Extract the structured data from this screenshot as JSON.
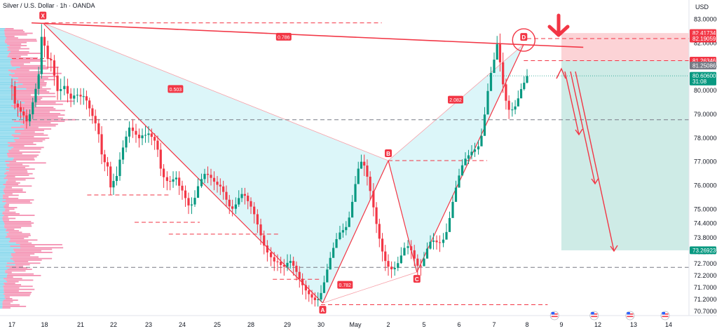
{
  "header": {
    "title": "Silver / U.S. Dollar · 1h · OANDA",
    "currency": "USD"
  },
  "chart_data": {
    "type": "candlestick-harmonic",
    "title": "Silver / U.S. Dollar · 1h · OANDA",
    "ylim": [
      70.55,
      83.4
    ],
    "price_ticks": [
      83.0,
      82.0,
      81.0,
      80.0,
      79.0,
      78.0,
      77.0,
      76.0,
      75.0,
      74.4,
      73.8,
      73.2,
      72.7,
      72.2,
      71.7,
      71.2,
      70.7
    ],
    "time_ticks": [
      {
        "label": "17",
        "t": 0
      },
      {
        "label": "18",
        "t": 1
      },
      {
        "label": "21",
        "t": 2
      },
      {
        "label": "22",
        "t": 3
      },
      {
        "label": "23",
        "t": 4
      },
      {
        "label": "24",
        "t": 5
      },
      {
        "label": "25",
        "t": 6
      },
      {
        "label": "28",
        "t": 7
      },
      {
        "label": "29",
        "t": 8
      },
      {
        "label": "30",
        "t": 9
      },
      {
        "label": "May",
        "t": 10
      },
      {
        "label": "2",
        "t": 11
      },
      {
        "label": "5",
        "t": 12
      },
      {
        "label": "6",
        "t": 13
      },
      {
        "label": "7",
        "t": 14
      },
      {
        "label": "8",
        "t": 15
      },
      {
        "label": "9",
        "t": 16
      },
      {
        "label": "12",
        "t": 17
      },
      {
        "label": "13",
        "t": 18
      },
      {
        "label": "14",
        "t": 19
      }
    ],
    "pattern_points": [
      {
        "label": "X",
        "t": 0.95,
        "price": 82.85
      },
      {
        "label": "A",
        "t": 9.05,
        "price": 71.05
      },
      {
        "label": "B",
        "t": 11.0,
        "price": 77.05
      },
      {
        "label": "C",
        "t": 11.8,
        "price": 72.35
      },
      {
        "label": "D",
        "t": 14.9,
        "price": 81.95
      }
    ],
    "ratios": [
      {
        "label": "0.503",
        "t": 4.8,
        "price": 80.05
      },
      {
        "label": "2.082",
        "t": 12.9,
        "price": 79.6
      },
      {
        "label": "0.782",
        "t": 9.7,
        "price": 71.8
      },
      {
        "label": "0.786",
        "t": 7.9,
        "price": 82.25
      }
    ],
    "price_tags": [
      {
        "label": "82.41734",
        "price": 82.42,
        "color": "#f23645"
      },
      {
        "label": "82.19059",
        "price": 82.19,
        "color": "#f23645"
      },
      {
        "label": "81.26346",
        "price": 81.26,
        "color": "#f23645"
      },
      {
        "label": "81.25086",
        "price": 81.05,
        "color": "#787b86"
      },
      {
        "label": "80.60600",
        "price": 80.62,
        "color": "#089981"
      },
      {
        "label": "31:08",
        "price": 80.38,
        "color": "#089981"
      },
      {
        "label": "73.26923",
        "price": 73.27,
        "color": "#089981"
      }
    ],
    "candles": [
      [
        0.0,
        80.21,
        80.18,
        80.5,
        79.6
      ],
      [
        0.09,
        80.18,
        79.45,
        80.4,
        79.2
      ],
      [
        0.18,
        79.45,
        79.3,
        79.6,
        78.9
      ],
      [
        0.27,
        79.3,
        79.12,
        79.55,
        78.8
      ],
      [
        0.36,
        79.12,
        78.95,
        79.3,
        78.6
      ],
      [
        0.45,
        78.95,
        78.7,
        79.2,
        78.4
      ],
      [
        0.55,
        78.7,
        79.0,
        79.2,
        78.5
      ],
      [
        0.64,
        79.0,
        79.51,
        79.7,
        78.8
      ],
      [
        0.73,
        79.51,
        80.07,
        80.3,
        79.3
      ],
      [
        0.82,
        80.07,
        80.69,
        81.0,
        79.8
      ],
      [
        0.91,
        80.69,
        82.26,
        82.8,
        80.5
      ],
      [
        1.0,
        82.26,
        81.89,
        82.6,
        81.4
      ],
      [
        1.09,
        81.89,
        81.33,
        82.1,
        80.9
      ],
      [
        1.18,
        81.33,
        81.27,
        81.6,
        80.8
      ],
      [
        1.27,
        81.27,
        80.63,
        81.5,
        80.2
      ],
      [
        1.36,
        80.63,
        79.98,
        81.0,
        79.6
      ],
      [
        1.45,
        79.98,
        80.06,
        80.5,
        79.6
      ],
      [
        1.55,
        80.06,
        80.19,
        80.6,
        79.8
      ],
      [
        1.64,
        80.19,
        79.87,
        80.5,
        79.5
      ],
      [
        1.73,
        79.87,
        79.66,
        80.1,
        79.3
      ],
      [
        1.82,
        79.66,
        79.79,
        80.1,
        79.4
      ],
      [
        1.91,
        79.79,
        79.82,
        80.1,
        79.5
      ],
      [
        2.0,
        79.82,
        79.75,
        80.1,
        79.4
      ],
      [
        2.09,
        79.75,
        79.76,
        80.1,
        79.4
      ],
      [
        2.18,
        79.76,
        79.58,
        80.0,
        79.2
      ],
      [
        2.27,
        79.58,
        79.25,
        79.7,
        78.9
      ],
      [
        2.36,
        79.25,
        78.93,
        79.4,
        78.6
      ],
      [
        2.45,
        78.93,
        78.62,
        79.2,
        78.3
      ],
      [
        2.55,
        78.62,
        78.16,
        78.8,
        77.8
      ],
      [
        2.64,
        78.16,
        77.31,
        78.5,
        76.9
      ],
      [
        2.73,
        77.31,
        76.98,
        77.5,
        76.6
      ],
      [
        2.82,
        76.98,
        76.8,
        77.2,
        76.4
      ],
      [
        2.91,
        76.8,
        75.92,
        77.0,
        75.6
      ],
      [
        3.0,
        75.92,
        76.19,
        76.5,
        75.6
      ],
      [
        3.09,
        76.19,
        76.4,
        76.8,
        76.0
      ],
      [
        3.18,
        76.4,
        77.09,
        77.4,
        76.2
      ],
      [
        3.27,
        77.09,
        77.6,
        77.9,
        76.9
      ],
      [
        3.36,
        77.6,
        78.06,
        78.3,
        77.4
      ],
      [
        3.45,
        78.06,
        78.44,
        78.7,
        77.8
      ],
      [
        3.55,
        78.44,
        78.3,
        78.8,
        78.0
      ],
      [
        3.64,
        78.3,
        78.14,
        78.6,
        77.8
      ],
      [
        3.73,
        78.14,
        77.99,
        78.4,
        77.6
      ],
      [
        3.82,
        77.99,
        78.11,
        78.4,
        77.7
      ],
      [
        3.91,
        78.11,
        78.13,
        78.5,
        77.8
      ],
      [
        4.0,
        78.13,
        78.19,
        78.5,
        77.8
      ],
      [
        4.09,
        78.19,
        78.05,
        78.4,
        77.7
      ],
      [
        4.18,
        78.05,
        77.89,
        78.2,
        77.5
      ],
      [
        4.27,
        77.89,
        77.51,
        78.1,
        77.2
      ],
      [
        4.36,
        77.51,
        76.71,
        77.8,
        76.4
      ],
      [
        4.45,
        76.71,
        76.35,
        76.9,
        75.9
      ],
      [
        4.55,
        76.35,
        76.19,
        76.6,
        75.8
      ],
      [
        4.64,
        76.19,
        76.16,
        76.4,
        75.8
      ],
      [
        4.73,
        76.16,
        76.26,
        76.6,
        75.9
      ],
      [
        4.82,
        76.26,
        76.33,
        76.6,
        76.0
      ],
      [
        4.91,
        76.33,
        75.99,
        76.6,
        75.6
      ],
      [
        5.0,
        75.99,
        75.79,
        76.2,
        75.4
      ],
      [
        5.09,
        75.79,
        75.47,
        76.0,
        75.1
      ],
      [
        5.18,
        75.47,
        75.16,
        75.7,
        74.8
      ],
      [
        5.27,
        75.16,
        75.2,
        75.5,
        74.8
      ],
      [
        5.36,
        75.2,
        75.48,
        75.8,
        75.1
      ],
      [
        5.45,
        75.48,
        75.97,
        76.3,
        75.6
      ],
      [
        5.55,
        75.97,
        76.27,
        76.5,
        75.9
      ],
      [
        5.64,
        76.27,
        76.49,
        76.7,
        76.1
      ],
      [
        5.73,
        76.49,
        76.45,
        76.8,
        76.1
      ],
      [
        5.82,
        76.45,
        76.32,
        76.7,
        76.0
      ],
      [
        5.91,
        76.32,
        76.16,
        76.6,
        75.8
      ],
      [
        6.0,
        76.16,
        76.03,
        76.4,
        75.7
      ],
      [
        6.09,
        76.03,
        75.96,
        76.3,
        75.6
      ],
      [
        6.18,
        75.96,
        75.73,
        76.2,
        75.4
      ],
      [
        6.27,
        75.73,
        75.4,
        76.0,
        75.1
      ],
      [
        6.36,
        75.4,
        75.12,
        75.6,
        74.8
      ],
      [
        6.45,
        75.12,
        75.02,
        75.4,
        74.7
      ],
      [
        6.55,
        75.02,
        75.2,
        75.5,
        74.8
      ],
      [
        6.64,
        75.2,
        75.47,
        75.8,
        75.1
      ],
      [
        6.73,
        75.47,
        75.64,
        75.9,
        75.3
      ],
      [
        6.82,
        75.64,
        75.57,
        75.9,
        75.2
      ],
      [
        6.91,
        75.57,
        75.34,
        75.7,
        75.0
      ],
      [
        7.0,
        75.34,
        75.11,
        75.5,
        74.8
      ],
      [
        7.09,
        75.11,
        74.79,
        75.3,
        74.4
      ],
      [
        7.18,
        74.79,
        74.36,
        75.0,
        74.0
      ],
      [
        7.27,
        74.36,
        73.9,
        74.6,
        73.5
      ],
      [
        7.36,
        73.9,
        73.47,
        74.1,
        73.1
      ],
      [
        7.45,
        73.47,
        73.18,
        73.7,
        72.8
      ],
      [
        7.55,
        73.18,
        72.98,
        73.4,
        72.6
      ],
      [
        7.64,
        72.98,
        72.8,
        73.2,
        72.4
      ],
      [
        7.73,
        72.8,
        72.79,
        73.1,
        72.4
      ],
      [
        7.82,
        72.79,
        72.65,
        73.0,
        72.3
      ],
      [
        7.91,
        72.65,
        72.58,
        72.9,
        72.2
      ],
      [
        8.0,
        72.58,
        72.74,
        73.1,
        72.4
      ],
      [
        8.09,
        72.74,
        72.82,
        73.1,
        72.5
      ],
      [
        8.18,
        72.82,
        72.62,
        73.0,
        72.2
      ],
      [
        8.27,
        72.62,
        72.36,
        72.8,
        72.0
      ],
      [
        8.36,
        72.36,
        72.07,
        72.6,
        71.7
      ],
      [
        8.45,
        72.07,
        71.8,
        72.3,
        71.4
      ],
      [
        8.55,
        71.8,
        71.58,
        72.0,
        71.2
      ],
      [
        8.64,
        71.58,
        71.42,
        71.8,
        71.1
      ],
      [
        8.73,
        71.42,
        71.28,
        71.6,
        71.0
      ],
      [
        8.82,
        71.28,
        71.17,
        71.5,
        70.9
      ],
      [
        8.91,
        71.17,
        71.2,
        71.5,
        70.9
      ],
      [
        9.0,
        71.2,
        71.47,
        71.8,
        71.1
      ],
      [
        9.09,
        71.47,
        71.92,
        72.2,
        71.6
      ],
      [
        9.18,
        71.92,
        72.46,
        72.7,
        72.2
      ],
      [
        9.27,
        72.46,
        72.95,
        73.2,
        72.7
      ],
      [
        9.36,
        72.95,
        73.37,
        73.6,
        73.1
      ],
      [
        9.45,
        73.37,
        73.74,
        74.0,
        73.5
      ],
      [
        9.55,
        73.74,
        74.02,
        74.3,
        73.7
      ],
      [
        9.64,
        74.02,
        74.12,
        74.4,
        73.8
      ],
      [
        9.73,
        74.12,
        74.25,
        74.5,
        73.9
      ],
      [
        9.82,
        74.25,
        74.65,
        74.9,
        74.4
      ],
      [
        9.91,
        74.65,
        75.31,
        75.6,
        75.0
      ],
      [
        10.0,
        75.31,
        76.06,
        76.4,
        75.8
      ],
      [
        10.09,
        76.06,
        76.71,
        77.0,
        76.4
      ],
      [
        10.18,
        76.71,
        77.0,
        77.3,
        76.7
      ],
      [
        10.27,
        77.0,
        76.84,
        77.3,
        76.4
      ],
      [
        10.36,
        76.84,
        76.37,
        77.1,
        76.0
      ],
      [
        10.45,
        76.37,
        75.77,
        76.6,
        75.4
      ],
      [
        10.55,
        75.77,
        75.08,
        76.1,
        74.7
      ],
      [
        10.64,
        75.08,
        74.38,
        75.3,
        74.0
      ],
      [
        10.73,
        74.38,
        73.76,
        74.6,
        73.4
      ],
      [
        10.82,
        73.76,
        73.22,
        74.0,
        72.8
      ],
      [
        10.91,
        73.22,
        72.82,
        73.5,
        72.4
      ],
      [
        11.0,
        72.82,
        72.58,
        73.1,
        72.2
      ],
      [
        11.09,
        72.58,
        72.47,
        72.8,
        72.1
      ],
      [
        11.18,
        72.47,
        72.53,
        72.8,
        72.2
      ],
      [
        11.27,
        72.53,
        72.73,
        73.0,
        72.4
      ],
      [
        11.36,
        72.73,
        73.05,
        73.4,
        72.7
      ],
      [
        11.45,
        73.05,
        73.37,
        73.6,
        73.1
      ],
      [
        11.55,
        73.37,
        73.44,
        73.7,
        73.1
      ],
      [
        11.64,
        73.44,
        73.27,
        73.7,
        72.9
      ],
      [
        11.73,
        73.27,
        72.92,
        73.5,
        72.6
      ],
      [
        11.82,
        72.92,
        72.62,
        73.1,
        72.2
      ],
      [
        11.91,
        72.62,
        72.6,
        72.9,
        72.2
      ],
      [
        12.0,
        72.6,
        72.92,
        73.2,
        72.6
      ],
      [
        12.09,
        72.92,
        73.34,
        73.6,
        73.0
      ],
      [
        12.18,
        73.34,
        73.63,
        73.9,
        73.3
      ],
      [
        12.27,
        73.63,
        73.68,
        74.0,
        73.3
      ],
      [
        12.36,
        73.68,
        73.61,
        73.9,
        73.3
      ],
      [
        12.45,
        73.61,
        73.58,
        73.9,
        73.2
      ],
      [
        12.55,
        73.58,
        73.72,
        74.0,
        73.4
      ],
      [
        12.64,
        73.72,
        74.04,
        74.4,
        73.8
      ],
      [
        12.73,
        74.04,
        74.63,
        74.9,
        74.4
      ],
      [
        12.82,
        74.63,
        75.31,
        75.6,
        75.0
      ],
      [
        12.91,
        75.31,
        75.91,
        76.2,
        75.7
      ],
      [
        13.0,
        75.91,
        76.42,
        76.7,
        76.2
      ],
      [
        13.09,
        76.42,
        76.85,
        77.1,
        76.6
      ],
      [
        13.18,
        76.85,
        77.13,
        77.4,
        76.9
      ],
      [
        13.27,
        77.13,
        77.27,
        77.5,
        76.9
      ],
      [
        13.36,
        77.27,
        77.42,
        77.7,
        77.1
      ],
      [
        13.45,
        77.42,
        77.52,
        77.8,
        77.2
      ],
      [
        13.55,
        77.52,
        77.65,
        77.9,
        77.3
      ],
      [
        13.64,
        77.65,
        78.09,
        78.4,
        77.8
      ],
      [
        13.73,
        78.09,
        78.99,
        79.3,
        78.7
      ],
      [
        13.82,
        78.99,
        79.98,
        80.3,
        79.7
      ],
      [
        13.91,
        79.98,
        80.74,
        81.0,
        80.5
      ],
      [
        14.0,
        80.74,
        81.3,
        81.6,
        81.0
      ],
      [
        14.09,
        81.3,
        81.95,
        82.3,
        81.6
      ],
      [
        14.18,
        81.95,
        81.19,
        82.4,
        80.8
      ],
      [
        14.27,
        81.19,
        80.26,
        81.6,
        79.9
      ],
      [
        14.36,
        80.26,
        79.57,
        80.5,
        79.2
      ],
      [
        14.45,
        79.57,
        79.19,
        79.8,
        78.8
      ],
      [
        14.55,
        79.19,
        79.2,
        79.5,
        78.9
      ],
      [
        14.64,
        79.2,
        79.33,
        79.6,
        79.0
      ],
      [
        14.73,
        79.33,
        79.67,
        80.0,
        79.4
      ],
      [
        14.82,
        79.67,
        80.06,
        80.3,
        79.8
      ],
      [
        14.91,
        80.06,
        80.33,
        80.6,
        80.0
      ],
      [
        15.0,
        80.33,
        80.61,
        80.9,
        80.3
      ]
    ]
  }
}
